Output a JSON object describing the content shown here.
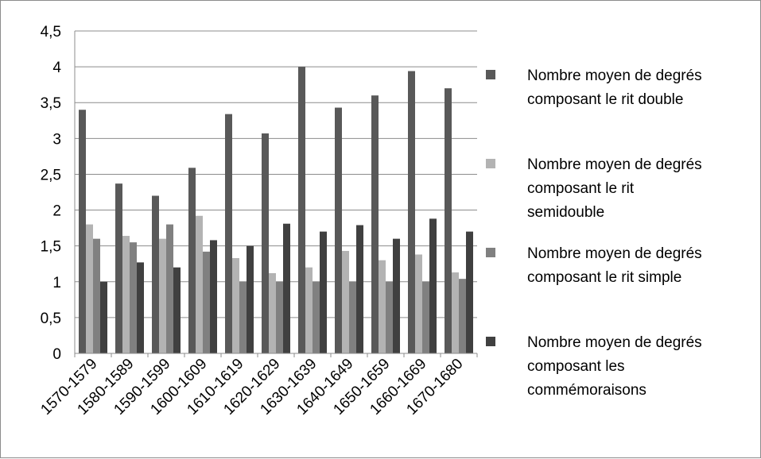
{
  "chart_data": {
    "type": "bar",
    "title": "",
    "xlabel": "",
    "ylabel": "",
    "ylim": [
      0,
      4.5
    ],
    "yticks": [
      "0",
      "0,5",
      "1",
      "1,5",
      "2",
      "2,5",
      "3",
      "3,5",
      "4",
      "4,5"
    ],
    "grid": true,
    "legend_position": "right",
    "categories": [
      "1570-1579",
      "1580-1589",
      "1590-1599",
      "1600-1609",
      "1610-1619",
      "1620-1629",
      "1630-1639",
      "1640-1649",
      "1650-1659",
      "1660-1669",
      "1670-1680"
    ],
    "series": [
      {
        "name": "Nombre moyen de degrés composant le rit double",
        "color": "#595959",
        "values": [
          3.4,
          2.37,
          2.2,
          2.59,
          3.34,
          3.07,
          4.0,
          3.43,
          3.6,
          3.94,
          3.7
        ]
      },
      {
        "name": "Nombre moyen de degrés composant le rit semidouble",
        "color": "#b3b3b3",
        "values": [
          1.8,
          1.64,
          1.6,
          1.92,
          1.33,
          1.12,
          1.2,
          1.43,
          1.3,
          1.38,
          1.13
        ]
      },
      {
        "name": "Nombre moyen de degrés composant le rit simple",
        "color": "#808080",
        "values": [
          1.6,
          1.55,
          1.8,
          1.42,
          1.0,
          1.0,
          1.0,
          1.0,
          1.0,
          1.0,
          1.04
        ]
      },
      {
        "name": "Nombre moyen de degrés composant les commémoraisons",
        "color": "#404040",
        "values": [
          1.0,
          1.27,
          1.2,
          1.58,
          1.5,
          1.81,
          1.7,
          1.79,
          1.6,
          1.88,
          1.7
        ]
      }
    ]
  },
  "legend": {
    "items": [
      {
        "lines": [
          "Nombre moyen de degrés",
          "composant le rit double"
        ]
      },
      {
        "lines": [
          "Nombre moyen de degrés",
          "composant le rit",
          "semidouble"
        ]
      },
      {
        "lines": [
          "Nombre moyen de degrés",
          "composant le rit simple"
        ]
      },
      {
        "lines": [
          "Nombre moyen de degrés",
          "composant les",
          "commémoraisons"
        ]
      }
    ]
  }
}
